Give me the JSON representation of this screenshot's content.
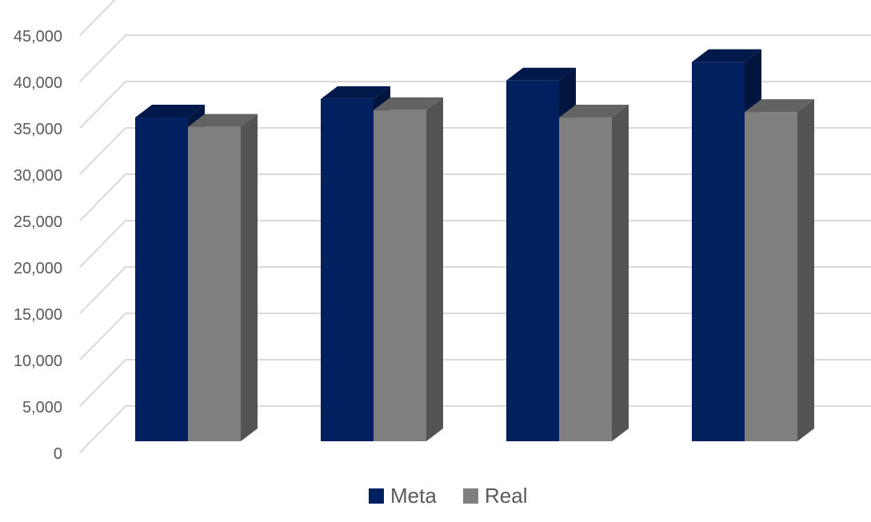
{
  "chart_data": {
    "type": "bar",
    "style": "3d-clustered-column",
    "categories": [
      "",
      "",
      "",
      ""
    ],
    "series": [
      {
        "name": "Meta",
        "color": "#002060",
        "values": [
          35000,
          37000,
          39000,
          41000
        ]
      },
      {
        "name": "Real",
        "color": "#7f7f7f",
        "values": [
          34000,
          35800,
          35000,
          35600
        ]
      }
    ],
    "ylim": [
      0,
      45000
    ],
    "ytick_step": 5000,
    "y_tick_labels": [
      "0",
      "5,000",
      "10,000",
      "15,000",
      "20,000",
      "25,000",
      "30,000",
      "35,000",
      "40,000",
      "45,000"
    ],
    "title": "",
    "xlabel": "",
    "ylabel": "",
    "grid": true,
    "legend_position": "bottom"
  }
}
